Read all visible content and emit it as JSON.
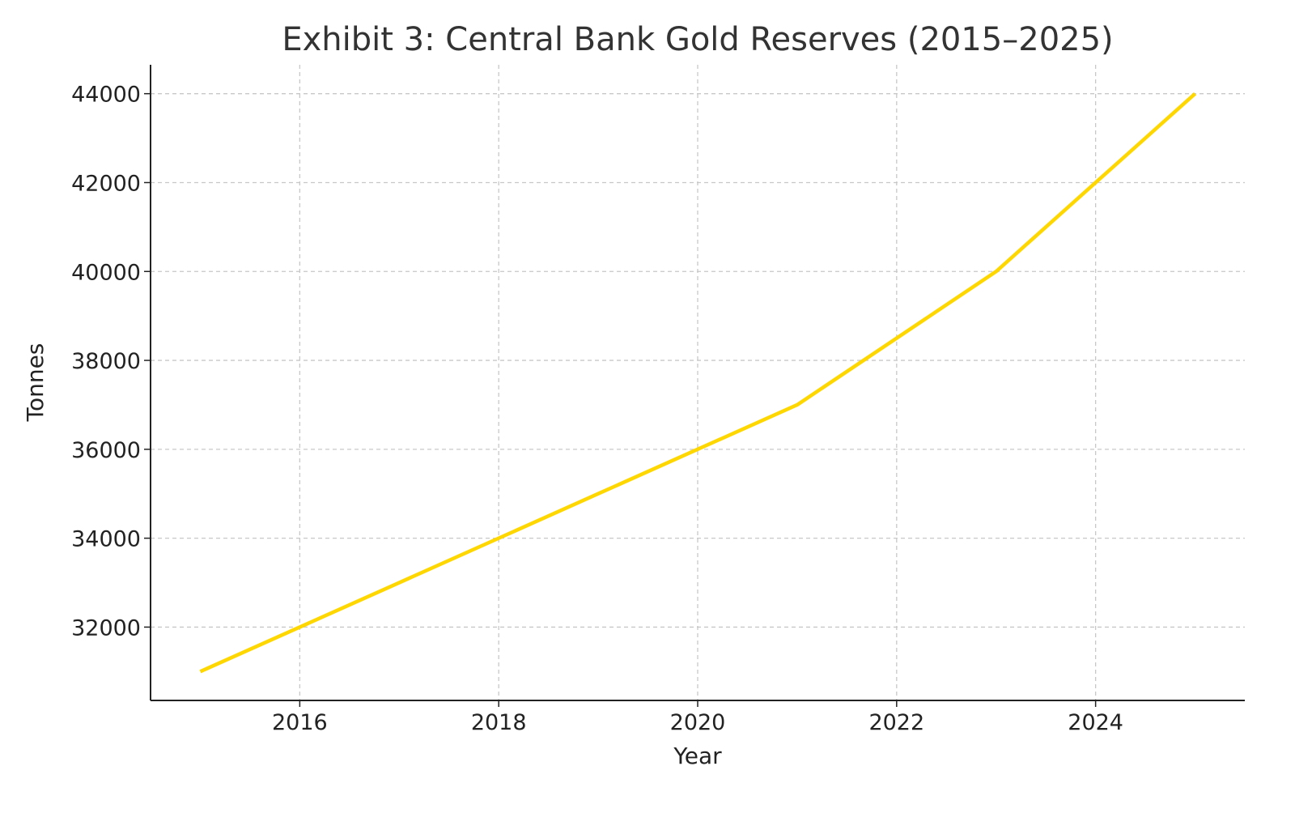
{
  "chart_data": {
    "type": "line",
    "title": "Exhibit 3: Central Bank Gold Reserves (2015–2025)",
    "xlabel": "Year",
    "ylabel": "Tonnes",
    "x": [
      2015,
      2016,
      2017,
      2018,
      2019,
      2020,
      2021,
      2022,
      2023,
      2024,
      2025
    ],
    "series": [
      {
        "values": [
          31000,
          32000,
          33000,
          34000,
          35000,
          36000,
          37000,
          38500,
          40000,
          42000,
          44000
        ],
        "color": "#FFD700"
      }
    ],
    "xlim": [
      2014.5,
      2025.5
    ],
    "ylim": [
      30350,
      44650
    ],
    "xticks": [
      "2016",
      "2018",
      "2020",
      "2022",
      "2024"
    ],
    "yticks": [
      "32000",
      "34000",
      "36000",
      "38000",
      "40000",
      "42000",
      "44000"
    ],
    "grid": true,
    "grid_style": "dashed",
    "legend": "none"
  }
}
